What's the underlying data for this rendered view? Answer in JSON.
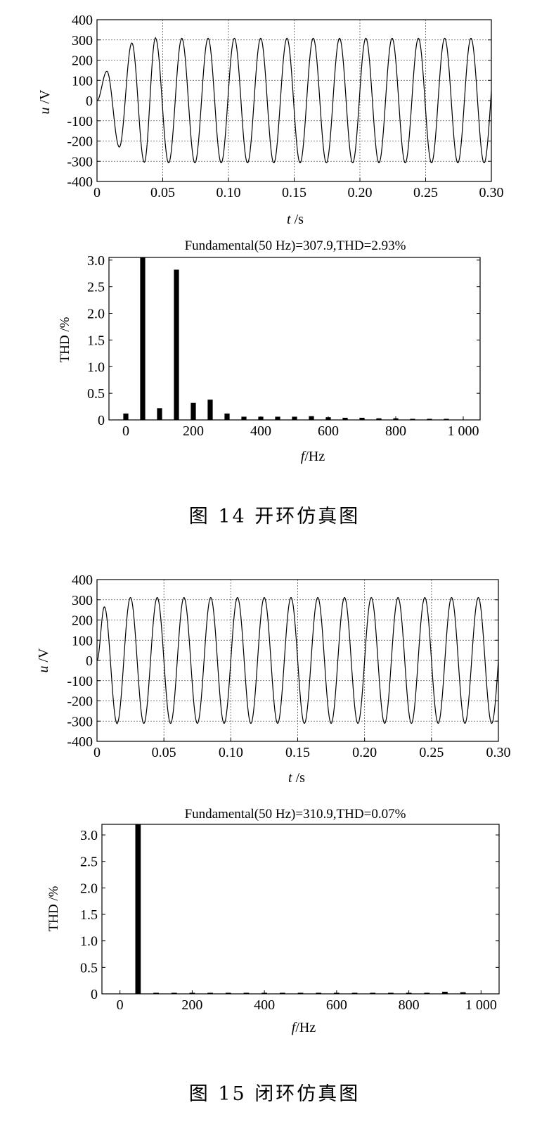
{
  "figure14": {
    "caption": "图 14   开环仿真图",
    "wave": {
      "type": "line",
      "xlabel_italic": "t",
      "xlabel_unit": " /s",
      "ylabel_italic": "u",
      "ylabel_unit": " /V",
      "xlim": [
        0,
        0.3
      ],
      "ylim": [
        -400,
        400
      ],
      "xticks": [
        "0",
        "0.05",
        "0.10",
        "0.15",
        "0.20",
        "0.25",
        "0.30"
      ],
      "yticks": [
        "400",
        "300",
        "200",
        "100",
        "0",
        "-100",
        "-200",
        "-300",
        "-400"
      ],
      "amplitude": 308,
      "frequency_hz": 50,
      "startup": [
        {
          "t": 0.0,
          "u": 0
        },
        {
          "t": 0.0075,
          "u": 145
        },
        {
          "t": 0.017,
          "u": -230
        },
        {
          "t": 0.0265,
          "u": 285
        },
        {
          "t": 0.036,
          "u": -305
        },
        {
          "t": 0.0445,
          "u": 310
        }
      ]
    },
    "spectrum": {
      "type": "bar",
      "title": "Fundamental(50 Hz)=307.9,THD=2.93%",
      "xlabel_italic": "f",
      "xlabel_unit": "/Hz",
      "ylabel": "THD /%",
      "xlim": [
        -50,
        1050
      ],
      "ylim": [
        0,
        3.05
      ],
      "xticks": [
        "0",
        "200",
        "400",
        "600",
        "800",
        "1 000"
      ],
      "yticks": [
        "3.0",
        "2.5",
        "2.0",
        "1.5",
        "1.0",
        "0.5",
        "0"
      ],
      "x": [
        0,
        50,
        100,
        150,
        200,
        250,
        300,
        350,
        400,
        450,
        500,
        550,
        600,
        650,
        700,
        750,
        800,
        850,
        900,
        950
      ],
      "values": [
        0.12,
        3.05,
        0.22,
        2.82,
        0.32,
        0.38,
        0.12,
        0.06,
        0.06,
        0.06,
        0.06,
        0.07,
        0.05,
        0.04,
        0.04,
        0.03,
        0.03,
        0.02,
        0.02,
        0.02
      ]
    }
  },
  "figure15": {
    "caption": "图 15   闭环仿真图",
    "wave": {
      "type": "line",
      "xlabel_italic": "t",
      "xlabel_unit": " /s",
      "ylabel_italic": "u",
      "ylabel_unit": " /V",
      "xlim": [
        0,
        0.3
      ],
      "ylim": [
        -400,
        400
      ],
      "xticks": [
        "0",
        "0.05",
        "0.10",
        "0.15",
        "0.20",
        "0.25",
        "0.30"
      ],
      "yticks": [
        "400",
        "300",
        "200",
        "100",
        "0",
        "-100",
        "-200",
        "-300",
        "-400"
      ],
      "amplitude": 311,
      "frequency_hz": 50,
      "startup": [
        {
          "t": 0.0,
          "u": 0
        },
        {
          "t": 0.0055,
          "u": 265
        },
        {
          "t": 0.015,
          "u": -312
        }
      ]
    },
    "spectrum": {
      "type": "bar",
      "title": "Fundamental(50 Hz)=310.9,THD=0.07%",
      "xlabel_italic": "f",
      "xlabel_unit": "/Hz",
      "ylabel": "THD /%",
      "xlim": [
        -50,
        1050
      ],
      "ylim": [
        0,
        3.2
      ],
      "xticks": [
        "0",
        "200",
        "400",
        "600",
        "800",
        "1 000"
      ],
      "yticks": [
        "3.0",
        "2.5",
        "2.0",
        "1.5",
        "1.0",
        "0.5",
        "0"
      ],
      "x": [
        0,
        50,
        100,
        150,
        200,
        250,
        300,
        350,
        400,
        450,
        500,
        550,
        600,
        650,
        700,
        750,
        800,
        850,
        900,
        950
      ],
      "values": [
        0.0,
        3.2,
        0.01,
        0.01,
        0.01,
        0.01,
        0.01,
        0.01,
        0.01,
        0.01,
        0.01,
        0.01,
        0.01,
        0.01,
        0.01,
        0.01,
        0.02,
        0.02,
        0.04,
        0.03
      ]
    }
  }
}
